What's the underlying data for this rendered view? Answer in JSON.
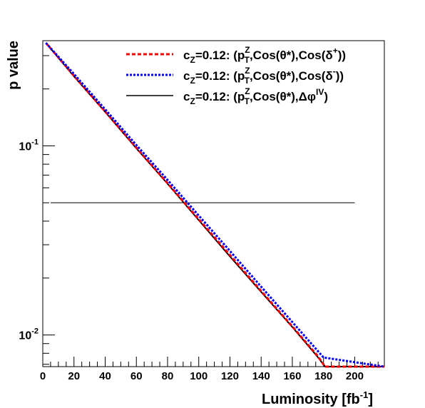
{
  "chart_data": {
    "type": "line",
    "title": "",
    "xlabel": "Luminosity [fb",
    "xlabel_sup": "-1",
    "xlabel_end": "]",
    "ylabel": "p value",
    "x_scale": "linear",
    "y_scale": "log",
    "xlim": [
      0,
      219
    ],
    "ylim": [
      0.0068,
      0.36
    ],
    "x_ticks": [
      0,
      20,
      40,
      60,
      80,
      100,
      120,
      140,
      160,
      180,
      200
    ],
    "x_tick_labels": [
      "0",
      "20",
      "40",
      "60",
      "80",
      "100",
      "120",
      "140",
      "160",
      "180",
      "200"
    ],
    "y_major_ticks": [
      {
        "value": 0.1,
        "base": "10",
        "exp": "-1"
      },
      {
        "value": 0.01,
        "base": "10",
        "exp": "-2"
      }
    ],
    "grid": false,
    "legend_position": "top-right",
    "series": [
      {
        "name": "c_Z=0.12: (p_T^Z,Cos(θ*),Cos(δ+))",
        "color": "#ff0000",
        "style": "dashed",
        "x": [
          2,
          20,
          40,
          60,
          80,
          100,
          120,
          140,
          160,
          176,
          181,
          219
        ],
        "y": [
          0.35,
          0.235,
          0.152,
          0.098,
          0.0635,
          0.041,
          0.0265,
          0.0171,
          0.0111,
          0.0078,
          0.0068,
          0.0068
        ]
      },
      {
        "name": "c_Z=0.12: (p_T^Z,Cos(θ*),Cos(δ-))",
        "color": "#0000ff",
        "style": "dotted",
        "x": [
          2,
          20,
          40,
          60,
          80,
          100,
          120,
          140,
          160,
          180,
          219
        ],
        "y": [
          0.35,
          0.24,
          0.156,
          0.101,
          0.066,
          0.0428,
          0.0278,
          0.018,
          0.0117,
          0.0076,
          0.0068
        ]
      },
      {
        "name": "c_Z=0.12: (p_T^Z,Cos(θ*),Δφ^IV)",
        "color": "#000000",
        "style": "solid",
        "x": [
          2,
          20,
          40,
          60,
          80,
          100,
          120,
          140,
          160,
          176,
          181,
          219
        ],
        "y": [
          0.35,
          0.233,
          0.151,
          0.097,
          0.063,
          0.0405,
          0.026,
          0.0169,
          0.011,
          0.0077,
          0.0068,
          0.0068
        ]
      }
    ],
    "reference_line": {
      "y": 0.05,
      "x": [
        5,
        200
      ],
      "color": "#000000"
    },
    "legend": [
      {
        "pre": "c",
        "sub1": "Z",
        "mid": "=0.12: (p",
        "sup2": "Z",
        "sub2": "T",
        "tail1": ",Cos(θ*),Cos(δ",
        "sup3": "+",
        "tail2": "))"
      },
      {
        "pre": "c",
        "sub1": "Z",
        "mid": "=0.12: (p",
        "sup2": "Z",
        "sub2": "T",
        "tail1": ",Cos(θ*),Cos(δ",
        "sup3": "-",
        "tail2": "))"
      },
      {
        "pre": "c",
        "sub1": "Z",
        "mid": "=0.12: (p",
        "sup2": "Z",
        "sub2": "T",
        "tail1": ",Cos(θ*),Δφ",
        "sup3": "IV",
        "tail2": ")"
      }
    ]
  }
}
